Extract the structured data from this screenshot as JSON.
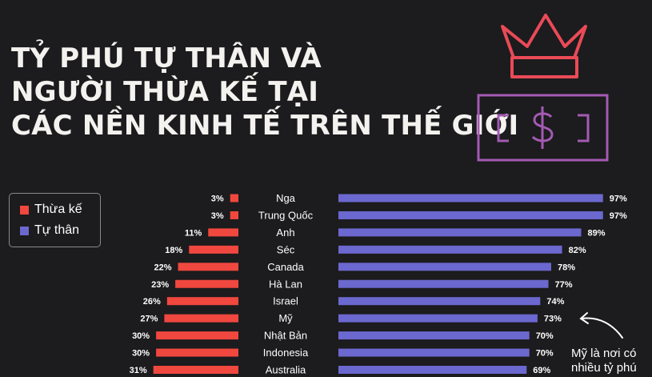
{
  "title_lines": [
    "TỶ PHÚ TỰ THÂN VÀ",
    "NGƯỜI THỪA KẾ TẠI",
    "CÁC NỀN KINH TẾ TRÊN THẾ GIỚI"
  ],
  "legend": [
    {
      "label": "Thừa kế",
      "color": "#f0473f"
    },
    {
      "label": "Tự thân",
      "color": "#6b68cf"
    }
  ],
  "annotation": {
    "line1": "Mỹ là nơi có",
    "line2": "nhiều tỷ phú"
  },
  "icons": [
    "crown-icon",
    "dollar-bill-icon",
    "arrow-icon"
  ],
  "colors": {
    "background": "#1c1b1d",
    "inherited": "#f0473f",
    "self_made": "#6b68cf",
    "crown": "#ea4a57",
    "bill": "#a45ab4"
  },
  "chart_data": {
    "type": "bar",
    "categories": [
      "Nga",
      "Trung Quốc",
      "Anh",
      "Séc",
      "Canada",
      "Hà Lan",
      "Israel",
      "Mỹ",
      "Nhật Bản",
      "Indonesia",
      "Australia"
    ],
    "series": [
      {
        "name": "Thừa kế",
        "values": [
          3,
          3,
          11,
          18,
          22,
          23,
          26,
          27,
          30,
          30,
          31
        ],
        "labels": [
          "3%",
          "3%",
          "11%",
          "18%",
          "22%",
          "23%",
          "26%",
          "27%",
          "30%",
          "30%",
          "31%"
        ]
      },
      {
        "name": "Tự thân",
        "values": [
          97,
          97,
          89,
          82,
          78,
          77,
          74,
          73,
          70,
          70,
          69
        ],
        "labels": [
          "97%",
          "97%",
          "89%",
          "82%",
          "78%",
          "77%",
          "74%",
          "73%",
          "70%",
          "70%",
          "69%"
        ]
      }
    ],
    "unit": "%",
    "legend_position": "left"
  }
}
